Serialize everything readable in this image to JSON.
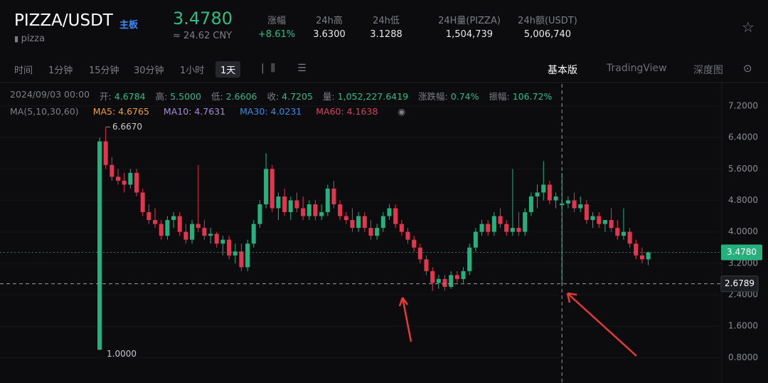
{
  "header": {
    "symbol": "PIZZA/USDT",
    "board": "主板",
    "base": "pizza",
    "price": "3.4780",
    "cny": "≈ 24.62 CNY",
    "stats": [
      {
        "label": "涨幅",
        "value": "+8.61%"
      },
      {
        "label": "24h高",
        "value": "3.6300"
      },
      {
        "label": "24h低",
        "value": "3.1288"
      },
      {
        "label": "24H量(PIZZA)",
        "value": "1,504,739"
      },
      {
        "label": "24h额(USDT)",
        "value": "5,006,740"
      }
    ]
  },
  "toolbar": {
    "intervals": [
      "时间",
      "1分钟",
      "15分钟",
      "30分钟",
      "1小时",
      "1天"
    ],
    "views": [
      "基本版",
      "TradingView",
      "深度图"
    ]
  },
  "info": {
    "date": "2024/09/03 00:00",
    "items": [
      {
        "label": "开:",
        "value": "4.6784"
      },
      {
        "label": "高:",
        "value": "5.5000"
      },
      {
        "label": "低:",
        "value": "2.6606"
      },
      {
        "label": "收:",
        "value": "4.7205"
      },
      {
        "label": "量:",
        "value": "1,052,227.6419"
      },
      {
        "label": "涨跌幅:",
        "value": "0.74%"
      },
      {
        "label": "振幅:",
        "value": "106.72%"
      }
    ]
  },
  "ma": {
    "title": "MA(5,10,30,60)",
    "items": [
      {
        "label": "MA5: 4.6765",
        "color": "#f0a030"
      },
      {
        "label": "MA10: 4.7631",
        "color": "#a88ad8"
      },
      {
        "label": "MA30: 4.0231",
        "color": "#3d8ae0"
      },
      {
        "label": "MA60: 4.1638",
        "color": "#e04055"
      }
    ]
  },
  "chart_data": {
    "type": "candlestick",
    "up_color": "#26b07e",
    "down_color": "#e3364e",
    "ylim": [
      0.3,
      7.76
    ],
    "yticks": [
      {
        "value": 7.2,
        "label": "7.2000"
      },
      {
        "value": 6.4,
        "label": "6.4000"
      },
      {
        "value": 5.6,
        "label": "5.6000"
      },
      {
        "value": 4.8,
        "label": "4.8000"
      },
      {
        "value": 4.0,
        "label": "4.0000"
      },
      {
        "value": 3.2,
        "label": "3.2000"
      },
      {
        "value": 2.4,
        "label": "2.4000"
      },
      {
        "value": 1.6,
        "label": "1.6000"
      },
      {
        "value": 0.8,
        "label": "0.8000"
      }
    ],
    "last_price": {
      "value": 3.478,
      "label": "3.4780"
    },
    "crosshair_price": {
      "value": 2.6789,
      "label": "2.6789"
    },
    "max_label": {
      "value": 6.667,
      "label": "6.6670"
    },
    "min_label": {
      "value": 1.0,
      "label": "1.0000"
    },
    "candles": [
      [
        1.0,
        6.4,
        1.0,
        6.3
      ],
      [
        6.3,
        6.667,
        5.6,
        5.7
      ],
      [
        5.7,
        5.9,
        5.3,
        5.4
      ],
      [
        5.4,
        5.6,
        5.2,
        5.3
      ],
      [
        5.3,
        5.5,
        5.0,
        5.2
      ],
      [
        5.2,
        5.6,
        5.1,
        5.5
      ],
      [
        5.5,
        5.6,
        4.9,
        5.0
      ],
      [
        5.0,
        5.1,
        4.4,
        4.5
      ],
      [
        4.5,
        4.7,
        4.2,
        4.3
      ],
      [
        4.3,
        4.6,
        4.1,
        4.2
      ],
      [
        4.2,
        4.3,
        3.8,
        3.9
      ],
      [
        3.9,
        4.4,
        3.8,
        4.3
      ],
      [
        4.3,
        4.5,
        4.1,
        4.4
      ],
      [
        4.4,
        4.5,
        3.9,
        4.0
      ],
      [
        4.0,
        4.2,
        3.7,
        3.8
      ],
      [
        3.8,
        4.3,
        3.7,
        4.2
      ],
      [
        4.2,
        5.7,
        4.0,
        4.1
      ],
      [
        4.1,
        4.3,
        3.8,
        3.9
      ],
      [
        3.9,
        4.1,
        3.7,
        3.95
      ],
      [
        3.95,
        4.0,
        3.6,
        3.7
      ],
      [
        3.7,
        3.9,
        3.4,
        3.8
      ],
      [
        3.8,
        3.9,
        3.3,
        3.4
      ],
      [
        3.4,
        3.7,
        3.2,
        3.5
      ],
      [
        3.5,
        3.7,
        3.0,
        3.1
      ],
      [
        3.1,
        3.8,
        3.0,
        3.7
      ],
      [
        3.7,
        4.3,
        3.6,
        4.2
      ],
      [
        4.2,
        4.8,
        4.1,
        4.7
      ],
      [
        4.7,
        6.0,
        4.6,
        5.6
      ],
      [
        5.6,
        5.7,
        4.5,
        4.6
      ],
      [
        4.6,
        5.0,
        4.3,
        4.9
      ],
      [
        4.9,
        5.1,
        4.4,
        4.5
      ],
      [
        4.5,
        4.9,
        4.3,
        4.8
      ],
      [
        4.8,
        5.0,
        4.5,
        4.6
      ],
      [
        4.6,
        4.9,
        4.3,
        4.4
      ],
      [
        4.4,
        4.8,
        4.3,
        4.7
      ],
      [
        4.7,
        4.8,
        4.3,
        4.4
      ],
      [
        4.4,
        4.7,
        4.3,
        4.5
      ],
      [
        4.5,
        5.2,
        4.4,
        5.1
      ],
      [
        5.1,
        5.3,
        4.6,
        4.7
      ],
      [
        4.7,
        4.8,
        4.3,
        4.4
      ],
      [
        4.4,
        4.5,
        4.2,
        4.3
      ],
      [
        4.3,
        4.6,
        4.0,
        4.1
      ],
      [
        4.1,
        4.5,
        4.0,
        4.4
      ],
      [
        4.4,
        4.5,
        4.0,
        4.1
      ],
      [
        4.1,
        4.3,
        3.8,
        3.9
      ],
      [
        3.9,
        4.2,
        3.8,
        4.1
      ],
      [
        4.1,
        4.5,
        4.0,
        4.4
      ],
      [
        4.4,
        4.7,
        4.3,
        4.6
      ],
      [
        4.6,
        4.7,
        4.1,
        4.2
      ],
      [
        4.2,
        4.3,
        3.9,
        4.0
      ],
      [
        4.0,
        4.1,
        3.7,
        3.8
      ],
      [
        3.8,
        3.9,
        3.5,
        3.6
      ],
      [
        3.6,
        3.7,
        3.2,
        3.3
      ],
      [
        3.3,
        3.4,
        2.9,
        3.0
      ],
      [
        3.0,
        3.1,
        2.5,
        2.7
      ],
      [
        2.7,
        2.9,
        2.55,
        2.8
      ],
      [
        2.8,
        2.9,
        2.5,
        2.6
      ],
      [
        2.6,
        3.0,
        2.55,
        2.9
      ],
      [
        2.9,
        3.0,
        2.7,
        2.8
      ],
      [
        2.8,
        3.1,
        2.7,
        3.0
      ],
      [
        3.0,
        3.7,
        2.9,
        3.6
      ],
      [
        3.6,
        4.1,
        3.5,
        4.0
      ],
      [
        4.0,
        4.3,
        3.9,
        4.2
      ],
      [
        4.2,
        4.3,
        3.9,
        4.0
      ],
      [
        4.0,
        4.5,
        3.9,
        4.4
      ],
      [
        4.4,
        4.6,
        4.1,
        4.2
      ],
      [
        4.2,
        4.3,
        3.9,
        4.0
      ],
      [
        4.0,
        5.6,
        3.9,
        4.1
      ],
      [
        4.1,
        4.5,
        3.9,
        4.0
      ],
      [
        4.0,
        4.6,
        3.9,
        4.5
      ],
      [
        4.5,
        5.0,
        4.4,
        4.9
      ],
      [
        4.9,
        5.2,
        4.6,
        5.0
      ],
      [
        5.0,
        5.8,
        4.8,
        5.2
      ],
      [
        5.2,
        5.3,
        4.7,
        4.8
      ],
      [
        4.8,
        5.0,
        4.6,
        4.9
      ],
      [
        4.6784,
        5.5,
        2.6606,
        4.7205
      ],
      [
        4.72,
        4.9,
        4.6,
        4.8
      ],
      [
        4.8,
        5.0,
        4.5,
        4.6
      ],
      [
        4.6,
        4.9,
        4.5,
        4.7
      ],
      [
        4.7,
        4.8,
        4.2,
        4.3
      ],
      [
        4.3,
        4.5,
        4.1,
        4.4
      ],
      [
        4.4,
        4.5,
        4.1,
        4.2
      ],
      [
        4.2,
        4.3,
        4.0,
        4.3
      ],
      [
        4.3,
        4.6,
        4.0,
        4.1
      ],
      [
        4.1,
        4.3,
        3.8,
        3.9
      ],
      [
        3.9,
        4.6,
        3.8,
        4.0
      ],
      [
        4.0,
        4.1,
        3.6,
        3.7
      ],
      [
        3.7,
        3.8,
        3.3,
        3.4
      ],
      [
        3.4,
        3.6,
        3.2,
        3.3
      ],
      [
        3.3,
        3.5,
        3.15,
        3.478
      ]
    ]
  }
}
